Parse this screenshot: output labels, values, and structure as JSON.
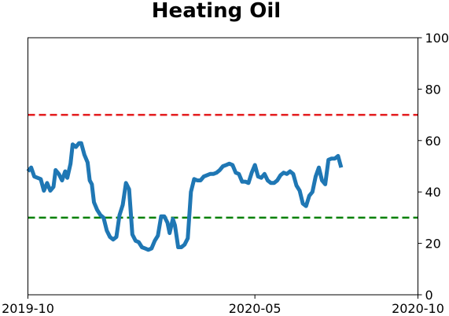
{
  "chart_data": {
    "type": "line",
    "title": "Heating Oil",
    "xlabel": "",
    "ylabel": "",
    "x_ticks": [
      "2019-10",
      "2020-05",
      "2020-10"
    ],
    "x_range": [
      "2019-10-01",
      "2020-10-01"
    ],
    "y_ticks": [
      0,
      20,
      40,
      60,
      80,
      100
    ],
    "ylim": [
      0,
      100
    ],
    "y_axis_side": "right",
    "grid": false,
    "colors": {
      "series": "#1f77b4",
      "upper_threshold": "#e31a1c",
      "lower_threshold": "#008000"
    },
    "thresholds": [
      {
        "value": 70,
        "color": "#e31a1c",
        "style": "dashed"
      },
      {
        "value": 30,
        "color": "#008000",
        "style": "dashed"
      }
    ],
    "series": [
      {
        "color": "#1f77b4",
        "points": [
          [
            "2019-10-01",
            48
          ],
          [
            "2019-10-04",
            49.5
          ],
          [
            "2019-10-07",
            46
          ],
          [
            "2019-10-10",
            45.5
          ],
          [
            "2019-10-13",
            45
          ],
          [
            "2019-10-16",
            40.5
          ],
          [
            "2019-10-19",
            43.5
          ],
          [
            "2019-10-22",
            40.5
          ],
          [
            "2019-10-25",
            42
          ],
          [
            "2019-10-27",
            48.5
          ],
          [
            "2019-10-30",
            47
          ],
          [
            "2019-11-02",
            44.5
          ],
          [
            "2019-11-05",
            48
          ],
          [
            "2019-11-07",
            45.5
          ],
          [
            "2019-11-10",
            51
          ],
          [
            "2019-11-12",
            58.5
          ],
          [
            "2019-11-15",
            57.5
          ],
          [
            "2019-11-18",
            59
          ],
          [
            "2019-11-20",
            59
          ],
          [
            "2019-11-23",
            54.5
          ],
          [
            "2019-11-26",
            51.5
          ],
          [
            "2019-11-28",
            44.5
          ],
          [
            "2019-11-30",
            43
          ],
          [
            "2019-12-02",
            36
          ],
          [
            "2019-12-05",
            33
          ],
          [
            "2019-12-08",
            31
          ],
          [
            "2019-12-11",
            30
          ],
          [
            "2019-12-14",
            25
          ],
          [
            "2019-12-17",
            22.5
          ],
          [
            "2019-12-20",
            21.5
          ],
          [
            "2019-12-23",
            22.5
          ],
          [
            "2019-12-26",
            31
          ],
          [
            "2019-12-29",
            35
          ],
          [
            "2020-01-01",
            43.5
          ],
          [
            "2020-01-04",
            41
          ],
          [
            "2020-01-07",
            23.5
          ],
          [
            "2020-01-10",
            21
          ],
          [
            "2020-01-13",
            20.5
          ],
          [
            "2020-01-16",
            18.5
          ],
          [
            "2020-01-19",
            18
          ],
          [
            "2020-01-22",
            17.5
          ],
          [
            "2020-01-25",
            18
          ],
          [
            "2020-01-28",
            21
          ],
          [
            "2020-01-31",
            23
          ],
          [
            "2020-02-03",
            30.5
          ],
          [
            "2020-02-06",
            30.5
          ],
          [
            "2020-02-09",
            28
          ],
          [
            "2020-02-11",
            24
          ],
          [
            "2020-02-14",
            29.5
          ],
          [
            "2020-02-16",
            27
          ],
          [
            "2020-02-19",
            18.5
          ],
          [
            "2020-02-22",
            18.5
          ],
          [
            "2020-02-25",
            19.5
          ],
          [
            "2020-02-28",
            22
          ],
          [
            "2020-03-02",
            40
          ],
          [
            "2020-03-05",
            45
          ],
          [
            "2020-03-08",
            44.5
          ],
          [
            "2020-03-11",
            44.5
          ],
          [
            "2020-03-14",
            46
          ],
          [
            "2020-03-17",
            46.5
          ],
          [
            "2020-03-20",
            47
          ],
          [
            "2020-03-23",
            47
          ],
          [
            "2020-03-26",
            47.5
          ],
          [
            "2020-03-29",
            48.5
          ],
          [
            "2020-04-01",
            50
          ],
          [
            "2020-04-04",
            50.5
          ],
          [
            "2020-04-07",
            51
          ],
          [
            "2020-04-10",
            50.5
          ],
          [
            "2020-04-13",
            47.5
          ],
          [
            "2020-04-16",
            47
          ],
          [
            "2020-04-19",
            44
          ],
          [
            "2020-04-22",
            44
          ],
          [
            "2020-04-25",
            43.5
          ],
          [
            "2020-04-28",
            47.5
          ],
          [
            "2020-05-01",
            50.5
          ],
          [
            "2020-05-04",
            46
          ],
          [
            "2020-05-07",
            45.5
          ],
          [
            "2020-05-10",
            47
          ],
          [
            "2020-05-13",
            44.5
          ],
          [
            "2020-05-16",
            43.5
          ],
          [
            "2020-05-19",
            43.5
          ],
          [
            "2020-05-22",
            44.5
          ],
          [
            "2020-05-25",
            46.5
          ],
          [
            "2020-05-28",
            47.5
          ],
          [
            "2020-05-31",
            47
          ],
          [
            "2020-06-03",
            48
          ],
          [
            "2020-06-06",
            47
          ],
          [
            "2020-06-09",
            42.5
          ],
          [
            "2020-06-12",
            40.5
          ],
          [
            "2020-06-15",
            35.5
          ],
          [
            "2020-06-18",
            34.5
          ],
          [
            "2020-06-21",
            38.5
          ],
          [
            "2020-06-24",
            40
          ],
          [
            "2020-06-27",
            46
          ],
          [
            "2020-06-30",
            49.5
          ],
          [
            "2020-07-03",
            44.5
          ],
          [
            "2020-07-06",
            43
          ],
          [
            "2020-07-09",
            52.5
          ],
          [
            "2020-07-12",
            53
          ],
          [
            "2020-07-15",
            53
          ],
          [
            "2020-07-18",
            54
          ],
          [
            "2020-07-21",
            49.5
          ]
        ]
      }
    ]
  }
}
